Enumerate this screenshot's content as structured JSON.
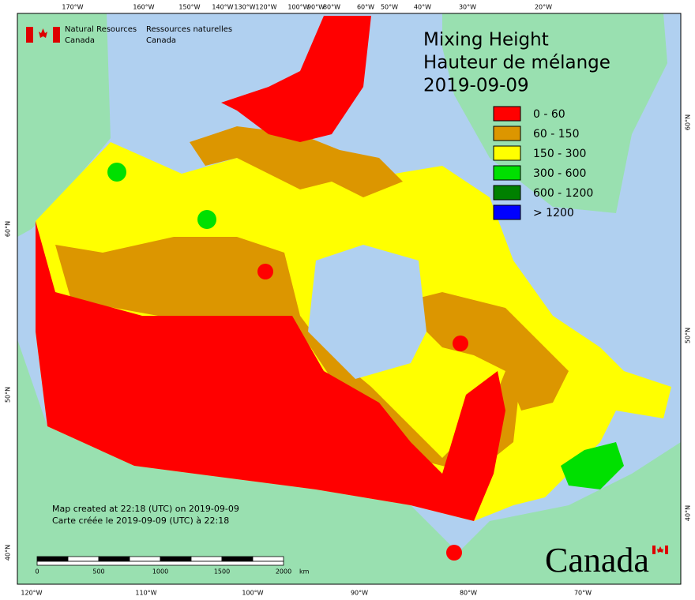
{
  "header": {
    "org_en": [
      "Natural Resources",
      "Canada"
    ],
    "org_fr": [
      "Ressources naturelles",
      "Canada"
    ]
  },
  "title": [
    "Mixing Height",
    "Hauteur de mélange",
    "2019-09-09"
  ],
  "legend": [
    {
      "label": "0 - 60",
      "color": "#ff0000"
    },
    {
      "label": "60 - 150",
      "color": "#dc9600"
    },
    {
      "label": "150 - 300",
      "color": "#ffff00"
    },
    {
      "label": "300 - 600",
      "color": "#00e000"
    },
    {
      "label": "600 - 1200",
      "color": "#008000"
    },
    {
      "label": "> 1200",
      "color": "#0000ff"
    }
  ],
  "top_lon_labels": [
    "170°W",
    "160°W",
    "150°W",
    "140°W",
    "130°W",
    "120°W",
    "100°W",
    "90°W",
    "80°W",
    "60°W",
    "50°W",
    "40°W",
    "30°W",
    "20°W"
  ],
  "bottom_lon_labels": [
    "120°W",
    "110°W",
    "100°W",
    "90°W",
    "80°W",
    "70°W"
  ],
  "left_lat_labels": [
    "60°N",
    "50°N",
    "40°N"
  ],
  "right_lat_labels": [
    "60°N",
    "50°N",
    "40°N"
  ],
  "scale": {
    "ticks": [
      "0",
      "500",
      "1000",
      "1500",
      "2000"
    ],
    "unit": "km"
  },
  "credits": [
    "Map created at 22:18 (UTC) on 2019-09-09",
    "Carte créée le 2019-09-09 (UTC) à 22:18"
  ],
  "wordmark": "Canada"
}
